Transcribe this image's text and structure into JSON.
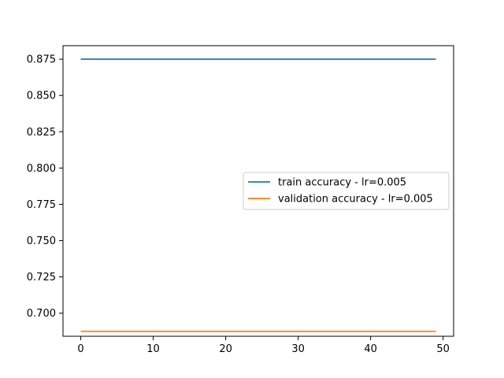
{
  "chart_data": {
    "type": "line",
    "title": "",
    "xlabel": "",
    "ylabel": "",
    "xlim": [
      -2.45,
      51.45
    ],
    "ylim": [
      0.6841,
      0.8843
    ],
    "xticks": [
      0,
      10,
      20,
      30,
      40,
      50
    ],
    "yticks": [
      0.7,
      0.725,
      0.75,
      0.775,
      0.8,
      0.825,
      0.85,
      0.875
    ],
    "xtick_labels": [
      "0",
      "10",
      "20",
      "30",
      "40",
      "50"
    ],
    "ytick_labels": [
      "0.700",
      "0.725",
      "0.750",
      "0.775",
      "0.800",
      "0.825",
      "0.850",
      "0.875"
    ],
    "grid": false,
    "legend_position": "center-right",
    "series": [
      {
        "name": "train accuracy - lr=0.005",
        "color": "#1f77b4",
        "x_start": 0,
        "x_end": 49,
        "values": [
          0.875,
          0.875,
          0.875,
          0.875,
          0.875,
          0.875,
          0.875,
          0.875,
          0.875,
          0.875,
          0.875,
          0.875,
          0.875,
          0.875,
          0.875,
          0.875,
          0.875,
          0.875,
          0.875,
          0.875,
          0.875,
          0.875,
          0.875,
          0.875,
          0.875,
          0.875,
          0.875,
          0.875,
          0.875,
          0.875,
          0.875,
          0.875,
          0.875,
          0.875,
          0.875,
          0.875,
          0.875,
          0.875,
          0.875,
          0.875,
          0.875,
          0.875,
          0.875,
          0.875,
          0.875,
          0.875,
          0.875,
          0.875,
          0.875,
          0.875
        ]
      },
      {
        "name": "validation accuracy - lr=0.005",
        "color": "#ff7f0e",
        "x_start": 0,
        "x_end": 49,
        "values": [
          0.6875,
          0.6875,
          0.6875,
          0.6875,
          0.6875,
          0.6875,
          0.6875,
          0.6875,
          0.6875,
          0.6875,
          0.6875,
          0.6875,
          0.6875,
          0.6875,
          0.6875,
          0.6875,
          0.6875,
          0.6875,
          0.6875,
          0.6875,
          0.6875,
          0.6875,
          0.6875,
          0.6875,
          0.6875,
          0.6875,
          0.6875,
          0.6875,
          0.6875,
          0.6875,
          0.6875,
          0.6875,
          0.6875,
          0.6875,
          0.6875,
          0.6875,
          0.6875,
          0.6875,
          0.6875,
          0.6875,
          0.6875,
          0.6875,
          0.6875,
          0.6875,
          0.6875,
          0.6875,
          0.6875,
          0.6875,
          0.6875,
          0.6875
        ]
      }
    ]
  }
}
